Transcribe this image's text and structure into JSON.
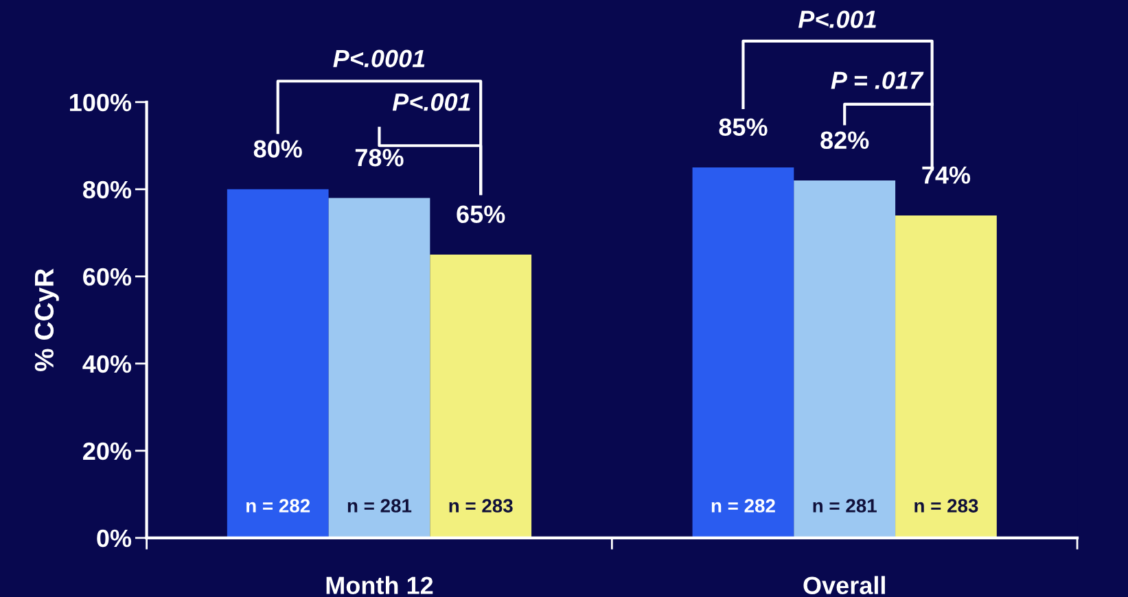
{
  "chart_data": {
    "type": "bar",
    "ylabel": "% CCyR",
    "categories": [
      "Month 12",
      "Overall"
    ],
    "series": [
      {
        "color": "#2a5cf0",
        "values": [
          80,
          85
        ]
      },
      {
        "color": "#9cc8f2",
        "values": [
          78,
          82
        ]
      },
      {
        "color": "#f2f07e",
        "values": [
          65,
          74
        ]
      }
    ],
    "ylim": [
      0,
      100
    ],
    "yticks": [
      {
        "value": 0,
        "label": "0%"
      },
      {
        "value": 20,
        "label": "20%"
      },
      {
        "value": 40,
        "label": "40%"
      },
      {
        "value": 60,
        "label": "60%"
      },
      {
        "value": 80,
        "label": "80%"
      },
      {
        "value": 100,
        "label": "100%"
      }
    ],
    "value_labels": [
      [
        "80%",
        "85%"
      ],
      [
        "78%",
        "82%"
      ],
      [
        "65%",
        "74%"
      ]
    ],
    "grid": false,
    "legend": false,
    "annotations": [
      "n = 282",
      "n = 281",
      "n = 283",
      "n = 282",
      "n = 281",
      "n = 283",
      "P<.0001",
      "P<.001",
      "P<.001",
      "P = .017"
    ]
  }
}
